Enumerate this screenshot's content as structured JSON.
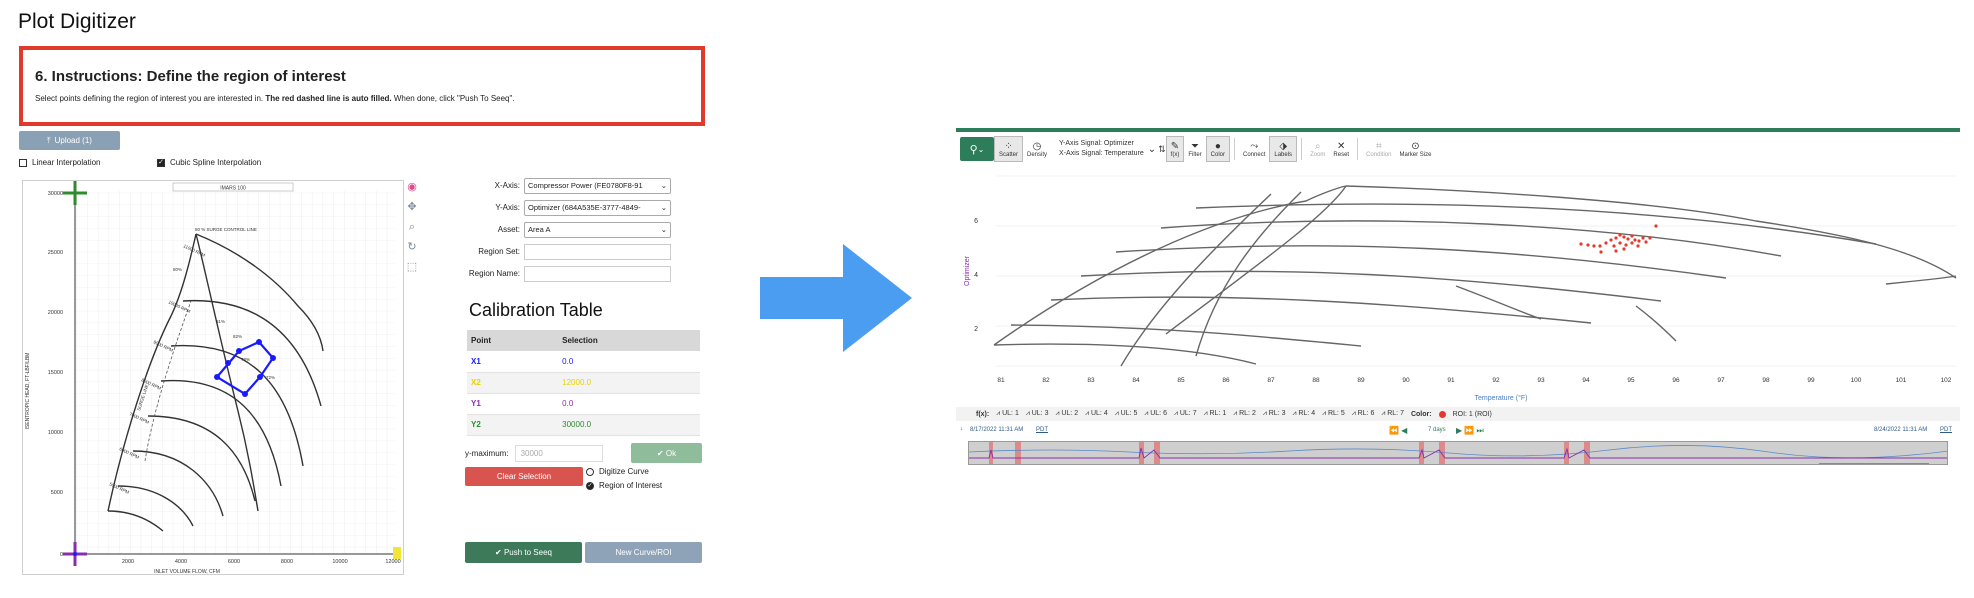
{
  "page_title": "Plot Digitizer",
  "instructions": {
    "heading": "6. Instructions: Define the region of interest",
    "text_before": "Select points defining the region of interest you are interested in. ",
    "text_bold": "The red dashed line is auto filled.",
    "text_after": " When done, click \"Push To Seeq\"."
  },
  "upload_button": "Upload (1)",
  "upload_icon": "upload-icon",
  "linear_interp": {
    "label": "Linear Interpolation",
    "checked": false
  },
  "spline_interp": {
    "label": "Cubic Spline Interpolation",
    "checked": true
  },
  "plot": {
    "header_label": "IMARS 100",
    "surge_label": "50 % SURGE CONTROL LINE",
    "xlabel": "INLET VOLUME FLOW, CFM",
    "ylabel": "ISENTROPIC HEAD, FT-LBF/LBM",
    "surge_small_label": "SURGE LINE",
    "x_ticks": [
      "0",
      "2000",
      "4000",
      "6000",
      "8000",
      "10000",
      "12000"
    ],
    "y_ticks": [
      "30000",
      "25000",
      "20000",
      "15000",
      "10000",
      "5000",
      "0"
    ],
    "pct_labels": [
      "80%",
      "81%",
      "82%",
      "78%",
      "72%"
    ],
    "rpm_labels": [
      "11000 RPM",
      "10000 RPM",
      "9000 RPM",
      "8000 RPM",
      "7000 RPM",
      "6000 RPM",
      "5000 RPM"
    ]
  },
  "form": {
    "x_axis": {
      "label": "X-Axis:",
      "value": "Compressor Power (FE0780F8-91"
    },
    "y_axis": {
      "label": "Y-Axis:",
      "value": "Optimizer (684A535E-3777-4849-"
    },
    "asset": {
      "label": "Asset:",
      "value": "Area A"
    },
    "region_set": {
      "label": "Region Set:",
      "value": ""
    },
    "region_name": {
      "label": "Region Name:",
      "value": ""
    }
  },
  "calibration": {
    "title": "Calibration Table",
    "headers": [
      "Point",
      "Selection"
    ],
    "rows": [
      {
        "point": "X1",
        "selection": "0.0",
        "color": "#1a1aff"
      },
      {
        "point": "X2",
        "selection": "12000.0",
        "color": "#e8d200"
      },
      {
        "point": "Y1",
        "selection": "0.0",
        "color": "#8b2fa8"
      },
      {
        "point": "Y2",
        "selection": "30000.0",
        "color": "#2e8b2e"
      }
    ]
  },
  "ymax": {
    "label": "y-maximum:",
    "placeholder": "30000"
  },
  "ok_button": "Ok",
  "clear_button": "Clear Selection",
  "radio": {
    "digitize": "Digitize Curve",
    "region": "Region of Interest"
  },
  "push_button": "Push to Seeq",
  "new_curve_button": "New Curve/ROI",
  "seeq": {
    "toolbar": {
      "scatter": "Scatter",
      "density": "Density",
      "y_signal": "Y-Axis Signal:  Optimizer",
      "x_signal": "X-Axis Signal: Temperature",
      "fx": "f(x)",
      "filter": "Filter",
      "color": "Color",
      "connect": "Connect",
      "labels": "Labels",
      "zoom": "Zoom",
      "reset": "Reset",
      "condition": "Condition",
      "marker_size": "Marker Size"
    },
    "x_ticks": [
      "81",
      "82",
      "83",
      "84",
      "85",
      "86",
      "87",
      "88",
      "89",
      "90",
      "91",
      "92",
      "93",
      "94",
      "95",
      "96",
      "97",
      "98",
      "99",
      "100",
      "101",
      "102"
    ],
    "y_ticks": [
      "6",
      "4",
      "2"
    ],
    "xlabel": "Temperature (°F)",
    "ylabel": "Optimizer",
    "fx_label": "f(x):",
    "fx_items": [
      "UL: 1",
      "UL: 3",
      "UL: 2",
      "UL: 4",
      "UL: 5",
      "UL: 6",
      "UL: 7",
      "RL: 1",
      "RL: 2",
      "RL: 3",
      "RL: 4",
      "RL: 5",
      "RL: 6",
      "RL: 7"
    ],
    "color_label": "Color:",
    "roi_label": "ROI: 1 (ROI)",
    "start_time": "8/17/2022 11:31 AM",
    "end_time": "8/24/2022 11:31 AM",
    "tz": "PDT",
    "duration": "7 days"
  }
}
